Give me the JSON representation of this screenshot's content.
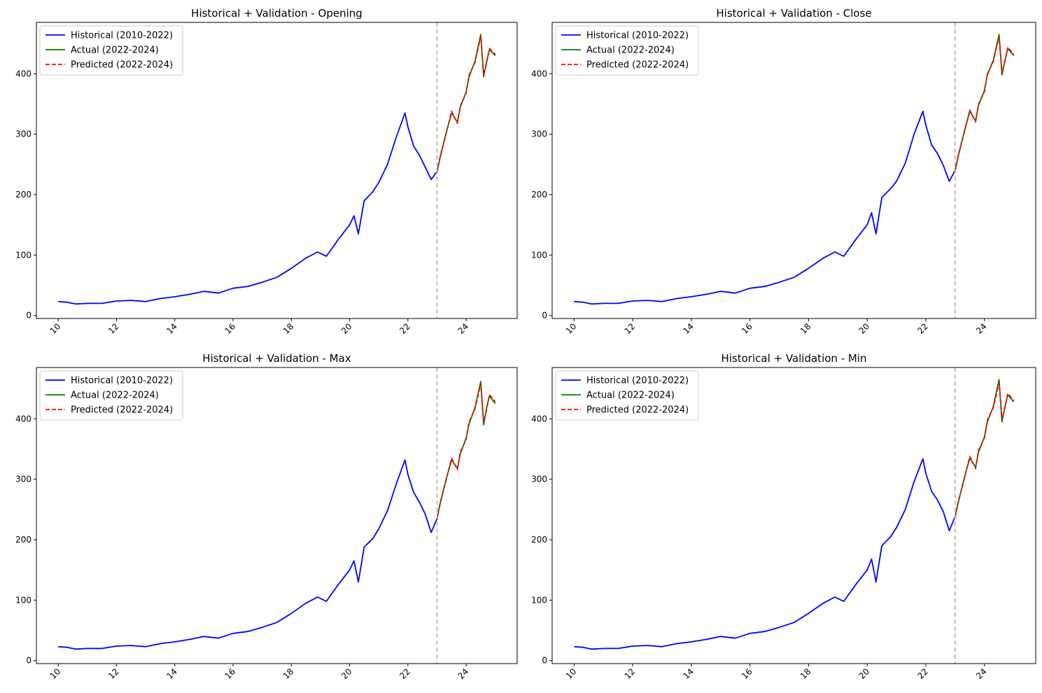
{
  "chart_data": [
    {
      "type": "line",
      "title": "Historical + Validation - Opening",
      "xlabel": "",
      "ylabel": "",
      "xlim": [
        9.25,
        25.75
      ],
      "ylim": [
        -5,
        485
      ],
      "x_ticks": [
        "10",
        "12",
        "14",
        "16",
        "18",
        "20",
        "22",
        "24"
      ],
      "y_ticks": [
        "0",
        "100",
        "200",
        "300",
        "400"
      ],
      "grid": false,
      "legend_position": "top-left",
      "vline": 23,
      "series": [
        {
          "name": "Historical (2010-2022)",
          "color": "#0000ff",
          "style": "solid",
          "x": [
            10.0,
            10.3,
            10.6,
            11.0,
            11.5,
            12.0,
            12.5,
            13.0,
            13.5,
            14.0,
            14.5,
            15.0,
            15.5,
            16.0,
            16.5,
            17.0,
            17.5,
            18.0,
            18.5,
            18.9,
            19.2,
            19.6,
            20.0,
            20.15,
            20.3,
            20.5,
            20.8,
            21.0,
            21.3,
            21.6,
            21.9,
            22.0,
            22.2,
            22.4,
            22.6,
            22.8,
            23.0
          ],
          "y": [
            23,
            22,
            19,
            20,
            20,
            24,
            25,
            23,
            28,
            31,
            35,
            40,
            37,
            45,
            48,
            55,
            63,
            78,
            95,
            105,
            98,
            125,
            150,
            165,
            135,
            190,
            205,
            220,
            250,
            295,
            335,
            312,
            280,
            265,
            245,
            225,
            238
          ]
        },
        {
          "name": "Actual (2022-2024)",
          "color": "#008000",
          "style": "solid",
          "x": [
            23.0,
            23.1,
            23.3,
            23.5,
            23.7,
            23.8,
            24.0,
            24.1,
            24.3,
            24.5,
            24.6,
            24.7,
            24.8,
            25.0
          ],
          "y": [
            238,
            260,
            300,
            335,
            320,
            345,
            370,
            395,
            420,
            465,
            395,
            420,
            440,
            430
          ]
        },
        {
          "name": "Predicted (2022-2024)",
          "color": "#ff0000",
          "style": "dashed",
          "x": [
            23.0,
            23.1,
            23.3,
            23.5,
            23.7,
            23.8,
            24.0,
            24.1,
            24.3,
            24.5,
            24.6,
            24.7,
            24.8,
            25.0
          ],
          "y": [
            236,
            262,
            298,
            338,
            318,
            347,
            368,
            398,
            418,
            462,
            398,
            417,
            442,
            432
          ]
        }
      ]
    },
    {
      "type": "line",
      "title": "Historical + Validation - Close",
      "xlabel": "",
      "ylabel": "",
      "xlim": [
        9.25,
        25.75
      ],
      "ylim": [
        -5,
        485
      ],
      "x_ticks": [
        "10",
        "12",
        "14",
        "16",
        "18",
        "20",
        "22",
        "24"
      ],
      "y_ticks": [
        "0",
        "100",
        "200",
        "300",
        "400"
      ],
      "grid": false,
      "legend_position": "top-left",
      "vline": 23,
      "series": [
        {
          "name": "Historical (2010-2022)",
          "color": "#0000ff",
          "style": "solid",
          "x": [
            10.0,
            10.3,
            10.6,
            11.0,
            11.5,
            12.0,
            12.5,
            13.0,
            13.5,
            14.0,
            14.5,
            15.0,
            15.5,
            16.0,
            16.5,
            17.0,
            17.5,
            18.0,
            18.5,
            18.9,
            19.2,
            19.6,
            20.0,
            20.15,
            20.3,
            20.5,
            20.8,
            21.0,
            21.3,
            21.6,
            21.9,
            22.0,
            22.2,
            22.4,
            22.6,
            22.8,
            23.0
          ],
          "y": [
            23,
            22,
            19,
            20,
            20,
            24,
            25,
            23,
            28,
            31,
            35,
            40,
            37,
            45,
            48,
            55,
            63,
            78,
            95,
            105,
            98,
            125,
            150,
            170,
            135,
            195,
            210,
            222,
            252,
            300,
            338,
            315,
            282,
            268,
            248,
            222,
            240
          ]
        },
        {
          "name": "Actual (2022-2024)",
          "color": "#008000",
          "style": "solid",
          "x": [
            23.0,
            23.1,
            23.3,
            23.5,
            23.7,
            23.8,
            24.0,
            24.1,
            24.3,
            24.5,
            24.6,
            24.7,
            24.8,
            25.0
          ],
          "y": [
            240,
            262,
            302,
            338,
            322,
            348,
            372,
            398,
            422,
            465,
            398,
            422,
            442,
            430
          ]
        },
        {
          "name": "Predicted (2022-2024)",
          "color": "#ff0000",
          "style": "dashed",
          "x": [
            23.0,
            23.1,
            23.3,
            23.5,
            23.7,
            23.8,
            24.0,
            24.1,
            24.3,
            24.5,
            24.6,
            24.7,
            24.8,
            25.0
          ],
          "y": [
            238,
            264,
            300,
            340,
            320,
            350,
            370,
            400,
            420,
            462,
            400,
            420,
            444,
            432
          ]
        }
      ]
    },
    {
      "type": "line",
      "title": "Historical + Validation - Max",
      "xlabel": "",
      "ylabel": "",
      "xlim": [
        9.25,
        25.75
      ],
      "ylim": [
        -5,
        485
      ],
      "x_ticks": [
        "10",
        "12",
        "14",
        "16",
        "18",
        "20",
        "22",
        "24"
      ],
      "y_ticks": [
        "0",
        "100",
        "200",
        "300",
        "400"
      ],
      "grid": false,
      "legend_position": "top-left",
      "vline": 23,
      "series": [
        {
          "name": "Historical (2010-2022)",
          "color": "#0000ff",
          "style": "solid",
          "x": [
            10.0,
            10.3,
            10.6,
            11.0,
            11.5,
            12.0,
            12.5,
            13.0,
            13.5,
            14.0,
            14.5,
            15.0,
            15.5,
            16.0,
            16.5,
            17.0,
            17.5,
            18.0,
            18.5,
            18.9,
            19.2,
            19.6,
            20.0,
            20.15,
            20.3,
            20.5,
            20.8,
            21.0,
            21.3,
            21.6,
            21.9,
            22.0,
            22.2,
            22.4,
            22.6,
            22.8,
            23.0
          ],
          "y": [
            23,
            22,
            19,
            20,
            20,
            24,
            25,
            23,
            28,
            31,
            35,
            40,
            37,
            45,
            48,
            55,
            63,
            78,
            95,
            105,
            98,
            125,
            150,
            165,
            130,
            188,
            202,
            218,
            248,
            292,
            332,
            308,
            278,
            262,
            242,
            212,
            235
          ]
        },
        {
          "name": "Actual (2022-2024)",
          "color": "#008000",
          "style": "solid",
          "x": [
            23.0,
            23.1,
            23.3,
            23.5,
            23.7,
            23.8,
            24.0,
            24.1,
            24.3,
            24.5,
            24.6,
            24.7,
            24.8,
            25.0
          ],
          "y": [
            235,
            258,
            298,
            332,
            318,
            342,
            368,
            392,
            418,
            462,
            390,
            418,
            438,
            425
          ]
        },
        {
          "name": "Predicted (2022-2024)",
          "color": "#ff0000",
          "style": "dashed",
          "x": [
            23.0,
            23.1,
            23.3,
            23.5,
            23.7,
            23.8,
            24.0,
            24.1,
            24.3,
            24.5,
            24.6,
            24.7,
            24.8,
            25.0
          ],
          "y": [
            233,
            260,
            296,
            335,
            316,
            345,
            366,
            395,
            416,
            458,
            394,
            415,
            440,
            428
          ]
        }
      ]
    },
    {
      "type": "line",
      "title": "Historical + Validation - Min",
      "xlabel": "",
      "ylabel": "",
      "xlim": [
        9.25,
        25.75
      ],
      "ylim": [
        -5,
        485
      ],
      "x_ticks": [
        "10",
        "12",
        "14",
        "16",
        "18",
        "20",
        "22",
        "24"
      ],
      "y_ticks": [
        "0",
        "100",
        "200",
        "300",
        "400"
      ],
      "grid": false,
      "legend_position": "top-left",
      "vline": 23,
      "series": [
        {
          "name": "Historical (2010-2022)",
          "color": "#0000ff",
          "style": "solid",
          "x": [
            10.0,
            10.3,
            10.6,
            11.0,
            11.5,
            12.0,
            12.5,
            13.0,
            13.5,
            14.0,
            14.5,
            15.0,
            15.5,
            16.0,
            16.5,
            17.0,
            17.5,
            18.0,
            18.5,
            18.9,
            19.2,
            19.6,
            20.0,
            20.15,
            20.3,
            20.5,
            20.8,
            21.0,
            21.3,
            21.6,
            21.9,
            22.0,
            22.2,
            22.4,
            22.6,
            22.8,
            23.0
          ],
          "y": [
            23,
            22,
            19,
            20,
            20,
            24,
            25,
            23,
            28,
            31,
            35,
            40,
            37,
            45,
            48,
            55,
            63,
            78,
            95,
            105,
            98,
            125,
            150,
            168,
            130,
            190,
            205,
            220,
            250,
            296,
            334,
            310,
            280,
            266,
            246,
            215,
            238
          ]
        },
        {
          "name": "Actual (2022-2024)",
          "color": "#008000",
          "style": "solid",
          "x": [
            23.0,
            23.1,
            23.3,
            23.5,
            23.7,
            23.8,
            24.0,
            24.1,
            24.3,
            24.5,
            24.6,
            24.7,
            24.8,
            25.0
          ],
          "y": [
            238,
            260,
            300,
            335,
            320,
            345,
            370,
            395,
            420,
            465,
            395,
            420,
            440,
            428
          ]
        },
        {
          "name": "Predicted (2022-2024)",
          "color": "#ff0000",
          "style": "dashed",
          "x": [
            23.0,
            23.1,
            23.3,
            23.5,
            23.7,
            23.8,
            24.0,
            24.1,
            24.3,
            24.5,
            24.6,
            24.7,
            24.8,
            25.0
          ],
          "y": [
            236,
            262,
            298,
            338,
            318,
            348,
            368,
            398,
            418,
            460,
            398,
            418,
            442,
            430
          ]
        }
      ]
    }
  ]
}
